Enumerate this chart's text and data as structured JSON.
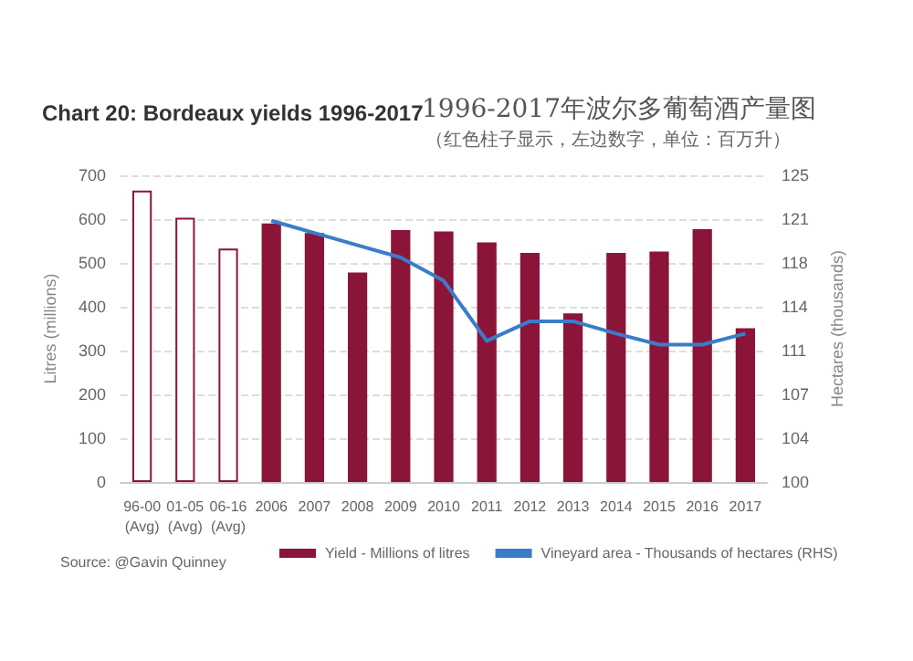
{
  "chart_data": {
    "type": "bar",
    "title": "Chart 20: Bordeaux yields 1996-2017",
    "subtitle": "1996-2017年波尔多葡萄酒产量图",
    "annotations": [
      "（红色柱子显示，左边数字，单位：百万升）",
      "Source: @Gavin Quinney"
    ],
    "ylabel": "Litres (millions)",
    "y2label": "Hectares (thousands)",
    "categories": [
      "96-00 (Avg)",
      "01-05 (Avg)",
      "06-16 (Avg)",
      "2006",
      "2007",
      "2008",
      "2009",
      "2010",
      "2011",
      "2012",
      "2013",
      "2014",
      "2015",
      "2016",
      "2017"
    ],
    "series": [
      {
        "name": "Yield - Millions of litres",
        "color": "#8b1538",
        "colors": [
          "#ffffff",
          "#ffffff",
          "#ffffff",
          "#8b1538",
          "#8b1538",
          "#8b1538",
          "#8b1538",
          "#8b1538",
          "#8b1538",
          "#8b1538",
          "#8b1538",
          "#8b1538",
          "#8b1538",
          "#8b1538",
          "#8b1538"
        ],
        "values": [
          665,
          603,
          533,
          590,
          568,
          478,
          575,
          572,
          547,
          523,
          385,
          523,
          526,
          577,
          351
        ]
      },
      {
        "name": "Vineyard area - Thousands of hectares (RHS)",
        "type": "line",
        "axis": "y2",
        "color": "#3a7dc9",
        "values": [
          null,
          null,
          null,
          121.3,
          120.3,
          119.3,
          118.3,
          116.4,
          111.5,
          113.1,
          113.1,
          112.1,
          111.2,
          111.2,
          112.1
        ]
      }
    ],
    "ylim": [
      0,
      700
    ],
    "yticks": [
      0,
      100,
      200,
      300,
      400,
      500,
      600,
      700
    ],
    "y2lim": [
      100,
      125
    ],
    "y2ticks": [
      100,
      {
        "value": 103.57,
        "label": "104"
      },
      {
        "value": 107.14,
        "label": "107"
      },
      {
        "value": 110.71,
        "label": "111"
      },
      {
        "value": 114.29,
        "label": "114"
      },
      {
        "value": 117.86,
        "label": "118"
      },
      {
        "value": 121.43,
        "label": "121"
      },
      125
    ],
    "grid": "y",
    "legend": "bottom",
    "marker": "none"
  }
}
